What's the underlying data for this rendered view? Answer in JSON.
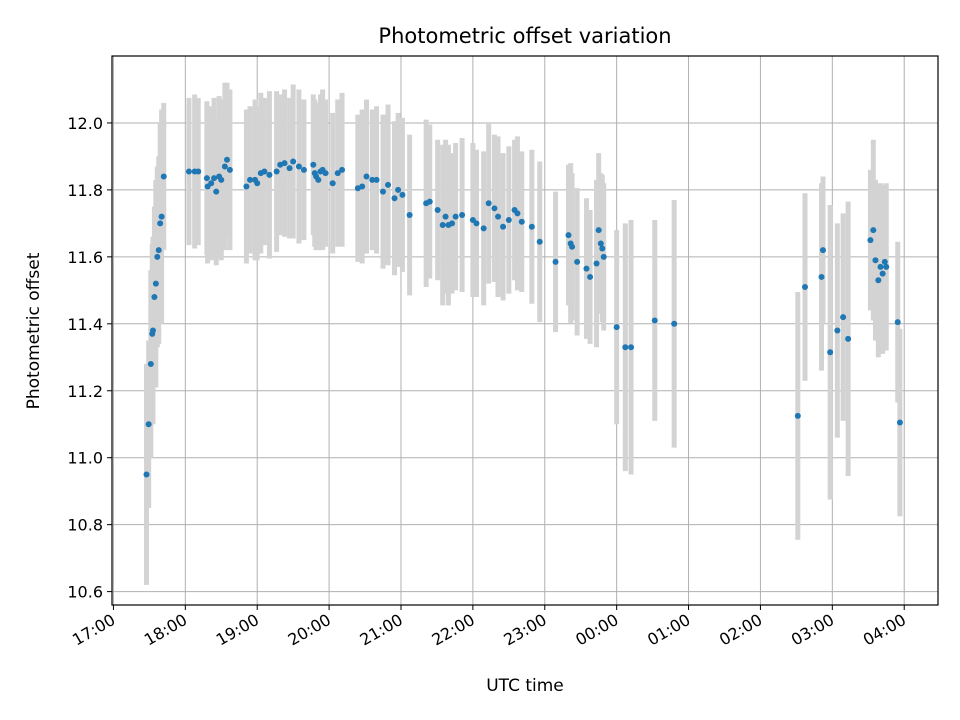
{
  "chart_data": {
    "type": "scatter",
    "title": "Photometric offset variation",
    "xlabel": "UTC time",
    "ylabel": "Photometric offset",
    "x_tick_labels": [
      "17:00",
      "18:00",
      "19:00",
      "20:00",
      "21:00",
      "22:00",
      "23:00",
      "00:00",
      "01:00",
      "02:00",
      "03:00",
      "04:00"
    ],
    "x_ticks_hours": [
      17,
      18,
      19,
      20,
      21,
      22,
      23,
      24,
      25,
      26,
      27,
      28
    ],
    "xlim_hours": [
      16.98,
      28.47
    ],
    "y_tick_labels": [
      "10.6",
      "10.8",
      "11.0",
      "11.2",
      "11.4",
      "11.6",
      "11.8",
      "12.0"
    ],
    "y_ticks": [
      10.6,
      10.8,
      11.0,
      11.2,
      11.4,
      11.6,
      11.8,
      12.0
    ],
    "ylim": [
      10.56,
      12.2
    ],
    "grid": true,
    "colors": {
      "point": "#1f77b4",
      "errorbar": "#d3d3d3",
      "grid": "#b0b0b0"
    },
    "series": [
      {
        "x_hours": [
          17.46,
          17.49,
          17.52,
          17.54,
          17.55,
          17.57,
          17.59,
          17.61,
          17.63,
          17.65,
          17.67,
          17.7,
          18.05,
          18.13,
          18.18,
          18.3,
          18.31,
          18.36,
          18.4,
          18.43,
          18.47,
          18.5,
          18.55,
          18.58,
          18.62,
          18.85,
          18.9,
          18.97,
          19.0,
          19.05,
          19.1,
          19.17,
          19.27,
          19.32,
          19.38,
          19.45,
          19.5,
          19.58,
          19.65,
          19.78,
          19.8,
          19.82,
          19.85,
          19.88,
          19.91,
          19.95,
          20.05,
          20.12,
          20.18,
          20.4,
          20.46,
          20.52,
          20.6,
          20.66,
          20.75,
          20.82,
          20.91,
          20.96,
          21.02,
          21.12,
          21.35,
          21.4,
          21.51,
          21.58,
          21.62,
          21.66,
          21.71,
          21.76,
          21.85,
          22.0,
          22.05,
          22.15,
          22.22,
          22.3,
          22.35,
          22.42,
          22.5,
          22.58,
          22.62,
          22.68,
          22.82,
          22.93,
          23.15,
          23.33,
          23.36,
          23.38,
          23.45,
          23.58,
          23.63,
          23.72,
          23.75,
          23.78,
          23.8,
          23.82,
          24.0,
          24.12,
          24.2,
          24.53,
          24.8,
          26.52,
          26.62,
          26.85,
          26.87,
          26.97,
          27.07,
          27.15,
          27.22,
          27.53,
          27.57,
          27.6,
          27.64,
          27.67,
          27.7,
          27.73,
          27.75,
          27.91,
          27.94
        ],
        "y": [
          10.95,
          11.1,
          11.28,
          11.37,
          11.38,
          11.48,
          11.52,
          11.6,
          11.62,
          11.7,
          11.72,
          11.84,
          11.855,
          11.855,
          11.855,
          11.835,
          11.81,
          11.82,
          11.835,
          11.795,
          11.84,
          11.83,
          11.87,
          11.89,
          11.86,
          11.81,
          11.83,
          11.83,
          11.82,
          11.85,
          11.855,
          11.845,
          11.855,
          11.875,
          11.88,
          11.865,
          11.885,
          11.87,
          11.86,
          11.875,
          11.85,
          11.84,
          11.83,
          11.855,
          11.86,
          11.85,
          11.82,
          11.85,
          11.86,
          11.805,
          11.81,
          11.84,
          11.83,
          11.83,
          11.795,
          11.815,
          11.775,
          11.8,
          11.785,
          11.725,
          11.76,
          11.765,
          11.74,
          11.695,
          11.72,
          11.695,
          11.7,
          11.72,
          11.725,
          11.71,
          11.7,
          11.685,
          11.76,
          11.745,
          11.72,
          11.69,
          11.71,
          11.74,
          11.73,
          11.705,
          11.69,
          11.645,
          11.585,
          11.665,
          11.64,
          11.63,
          11.585,
          11.565,
          11.54,
          11.58,
          11.68,
          11.64,
          11.625,
          11.6,
          11.39,
          11.33,
          11.33,
          11.41,
          11.4,
          11.125,
          11.51,
          11.54,
          11.62,
          11.315,
          11.38,
          11.42,
          11.355,
          11.65,
          11.68,
          11.59,
          11.53,
          11.57,
          11.55,
          11.585,
          11.57,
          11.405,
          11.105
        ],
        "yerr": [
          0.33,
          0.25,
          0.28,
          0.27,
          0.28,
          0.27,
          0.31,
          0.27,
          0.28,
          0.3,
          0.32,
          0.22,
          0.22,
          0.23,
          0.22,
          0.23,
          0.23,
          0.23,
          0.24,
          0.22,
          0.24,
          0.24,
          0.25,
          0.23,
          0.24,
          0.23,
          0.22,
          0.24,
          0.23,
          0.24,
          0.22,
          0.25,
          0.24,
          0.21,
          0.22,
          0.21,
          0.23,
          0.23,
          0.21,
          0.21,
          0.22,
          0.22,
          0.21,
          0.23,
          0.24,
          0.22,
          0.21,
          0.22,
          0.23,
          0.22,
          0.23,
          0.23,
          0.21,
          0.22,
          0.23,
          0.24,
          0.23,
          0.23,
          0.23,
          0.24,
          0.25,
          0.23,
          0.21,
          0.24,
          0.23,
          0.24,
          0.21,
          0.22,
          0.23,
          0.23,
          0.22,
          0.23,
          0.24,
          0.22,
          0.24,
          0.22,
          0.22,
          0.21,
          0.23,
          0.21,
          0.23,
          0.24,
          0.21,
          0.21,
          0.24,
          0.22,
          0.22,
          0.21,
          0.2,
          0.25,
          0.23,
          0.21,
          0.22,
          0.22,
          0.29,
          0.37,
          0.38,
          0.3,
          0.37,
          0.37,
          0.28,
          0.28,
          0.22,
          0.44,
          0.32,
          0.31,
          0.41,
          0.21,
          0.27,
          0.24,
          0.23,
          0.25,
          0.24,
          0.23,
          0.25,
          0.24,
          0.28
        ]
      }
    ]
  }
}
